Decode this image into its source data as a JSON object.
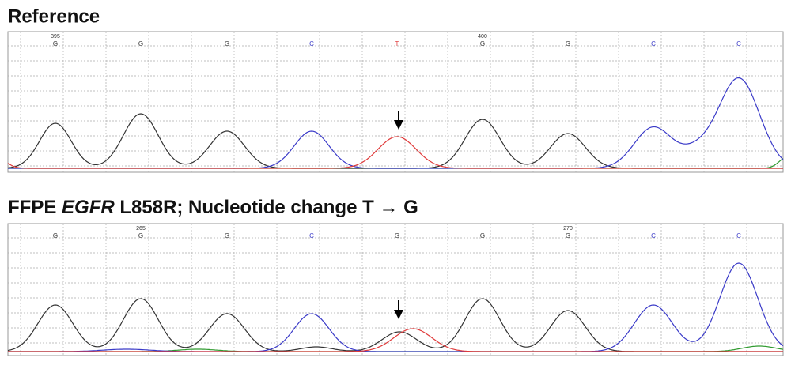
{
  "panels": [
    {
      "title": "Reference",
      "bases": [
        "G",
        "G",
        "G",
        "C",
        "T",
        "G",
        "G",
        "C",
        "C"
      ],
      "positions": [
        {
          "index": 0,
          "label": "395"
        },
        {
          "index": 5,
          "label": "400"
        }
      ]
    },
    {
      "title_before": "FFPE",
      "title_italic": "EGFR",
      "title_after": "L858R; Nucleotide change  T → G",
      "bases": [
        "G",
        "G",
        "G",
        "C",
        "G",
        "G",
        "G",
        "C",
        "C"
      ],
      "positions": [
        {
          "index": 1,
          "label": "265"
        },
        {
          "index": 6,
          "label": "270"
        }
      ]
    }
  ],
  "base_colors": {
    "G": "#333333",
    "C": "#3a3ac8",
    "T": "#e03a3a",
    "A": "#2f9a2f"
  }
}
